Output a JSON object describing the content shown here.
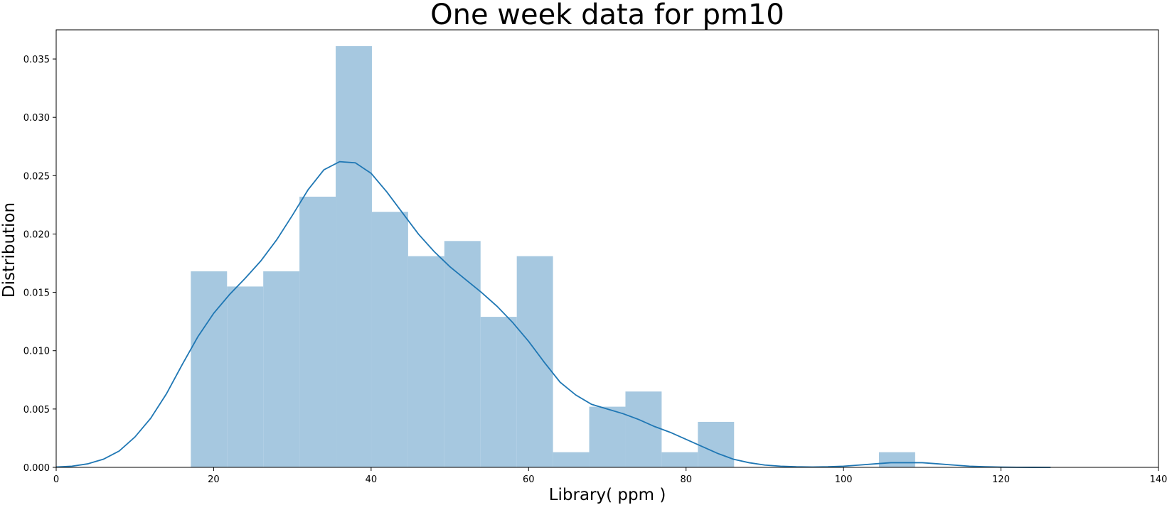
{
  "chart_data": {
    "type": "bar",
    "title": "One week data for pm10",
    "xlabel": "Library( ppm )",
    "ylabel": "Distribution",
    "xlim": [
      0,
      140
    ],
    "ylim": [
      0,
      0.0375
    ],
    "xticks": [
      0,
      20,
      40,
      60,
      80,
      100,
      120,
      140
    ],
    "xtick_labels": [
      "0",
      "20",
      "40",
      "60",
      "80",
      "100",
      "120",
      "140"
    ],
    "yticks": [
      0,
      0.005,
      0.01,
      0.015,
      0.02,
      0.025,
      0.03,
      0.035
    ],
    "ytick_labels": [
      "0.000",
      "0.005",
      "0.010",
      "0.015",
      "0.020",
      "0.025",
      "0.030",
      "0.035"
    ],
    "grid": false,
    "legend": "none",
    "colors": {
      "bar": "#a6c8e0",
      "kde": "#1f77b4",
      "axis": "#000000"
    },
    "histogram": {
      "bin_edges": [
        17.1,
        21.7,
        26.3,
        30.9,
        35.5,
        40.1,
        44.7,
        49.3,
        53.9,
        58.5,
        63.1,
        67.7,
        72.3,
        76.9,
        81.5,
        86.1,
        90.7,
        95.3,
        99.9,
        104.5,
        109.1
      ],
      "values": [
        0.0168,
        0.0155,
        0.0168,
        0.0232,
        0.0361,
        0.0219,
        0.0181,
        0.0194,
        0.0129,
        0.0181,
        0.0013,
        0.0052,
        0.0065,
        0.0013,
        0.0039,
        0,
        0,
        0,
        0,
        0.0013
      ]
    },
    "kde": {
      "x": [
        0,
        2,
        4,
        6,
        8,
        10,
        12,
        14,
        16,
        18,
        20,
        22,
        24,
        26,
        28,
        30,
        32,
        34,
        36,
        38,
        40,
        42,
        44,
        46,
        48,
        50,
        52,
        54,
        56,
        58,
        60,
        62,
        64,
        66,
        68,
        70,
        72,
        74,
        76,
        78,
        80,
        82,
        84,
        86,
        88,
        90,
        92,
        94,
        96,
        98,
        100,
        102,
        104,
        106,
        108,
        110,
        112,
        114,
        116,
        118,
        120,
        122,
        124,
        126.3
      ],
      "y": [
        3e-05,
        0.0001,
        0.0003,
        0.0007,
        0.0014,
        0.0026,
        0.0042,
        0.0063,
        0.0088,
        0.0112,
        0.0132,
        0.0148,
        0.0162,
        0.0177,
        0.0195,
        0.0216,
        0.0238,
        0.0255,
        0.0262,
        0.0261,
        0.0252,
        0.0236,
        0.0218,
        0.02,
        0.0185,
        0.0172,
        0.0161,
        0.015,
        0.0138,
        0.0124,
        0.0108,
        0.009,
        0.0073,
        0.0062,
        0.0054,
        0.005,
        0.0046,
        0.0041,
        0.0035,
        0.003,
        0.0024,
        0.0018,
        0.0012,
        0.0007,
        0.0004,
        0.0002,
        0.0001,
        5e-05,
        3e-05,
        5e-05,
        0.0001,
        0.0002,
        0.0003,
        0.0004,
        0.0004,
        0.0004,
        0.0003,
        0.0002,
        0.0001,
        5e-05,
        2e-05,
        1e-05,
        5e-06,
        0.0
      ]
    }
  }
}
